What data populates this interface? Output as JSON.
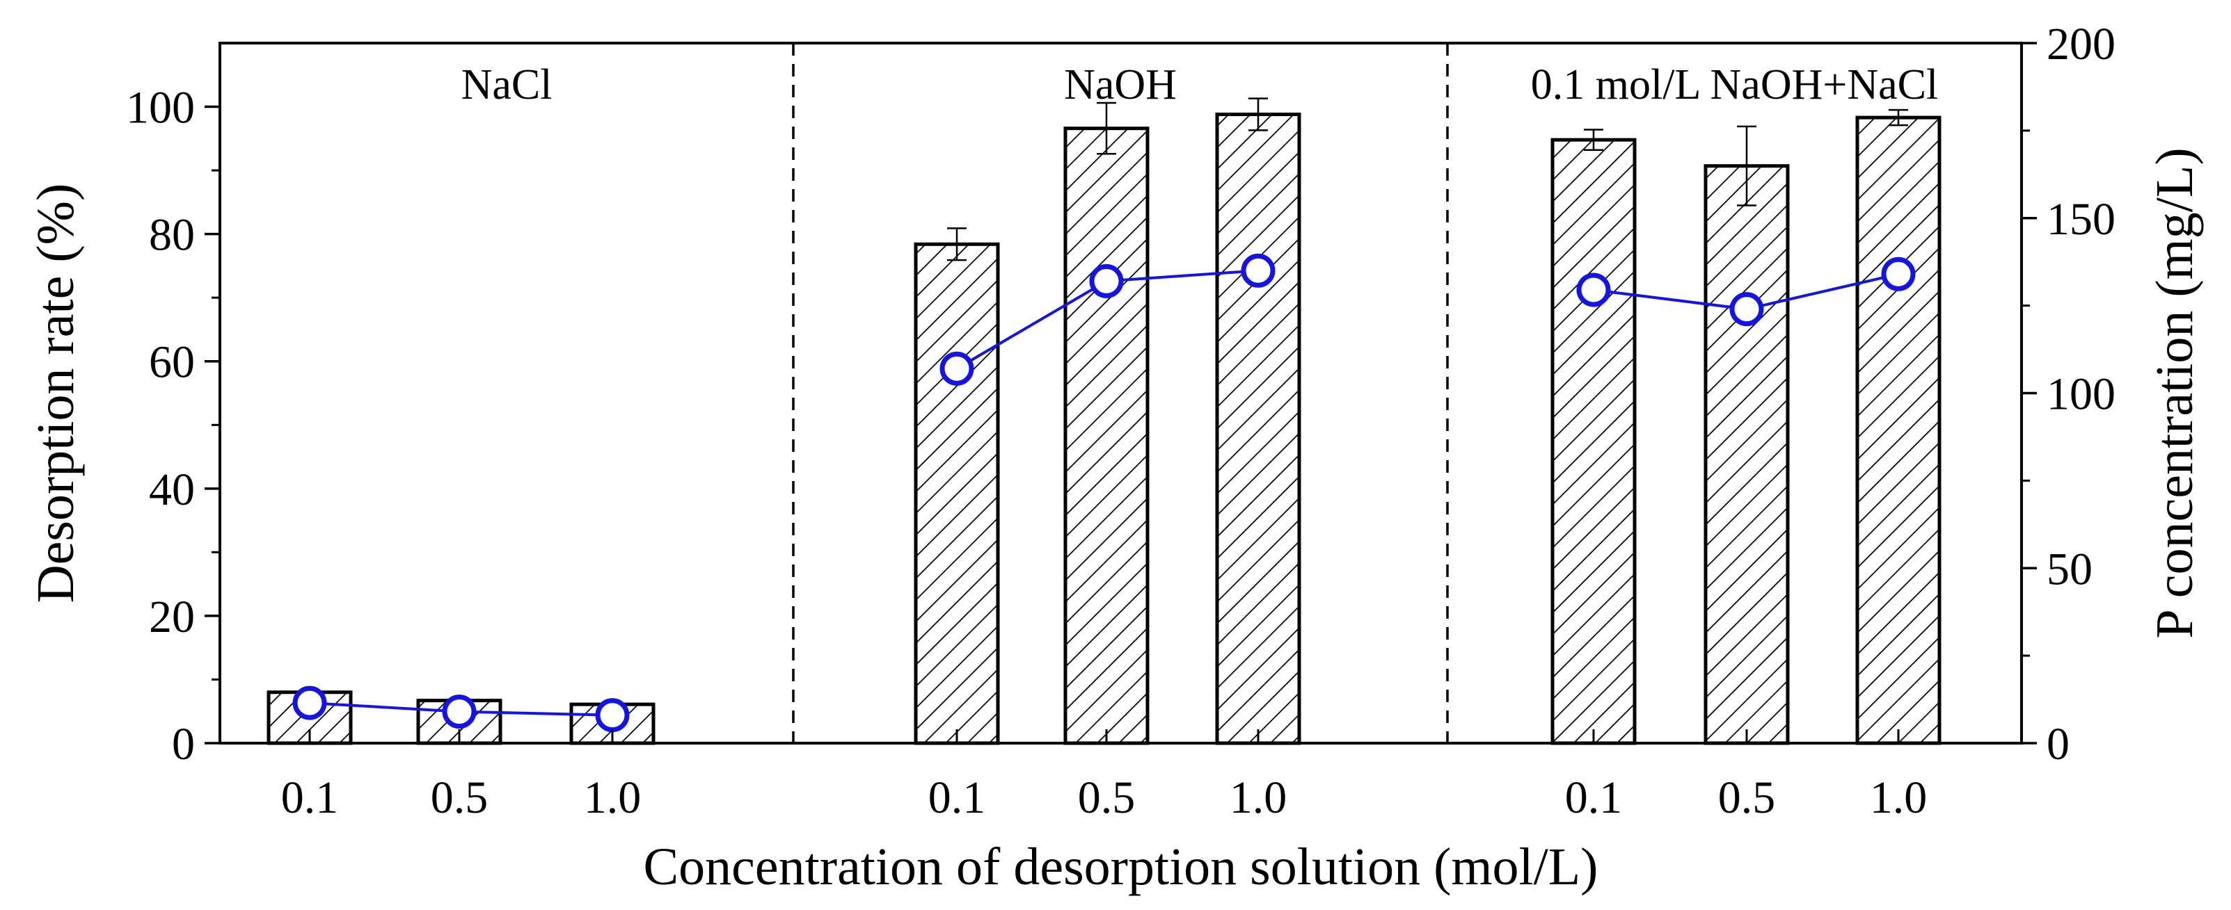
{
  "chart_data": {
    "type": "bar",
    "xlabel": "Concentration of desorption solution (mol/L)",
    "ylabel": "Desorption rate (%)",
    "y2label": "P concentration (mg/L)",
    "ylim": [
      0,
      110
    ],
    "y2lim": [
      0,
      200
    ],
    "yticks": [
      0,
      20,
      40,
      60,
      80,
      100
    ],
    "y2ticks": [
      0,
      50,
      100,
      150,
      200
    ],
    "grid": false,
    "groups": [
      {
        "label": "NaCl",
        "categories": [
          "0.1",
          "0.5",
          "1.0"
        ],
        "desorption_rate": [
          8.0,
          6.7,
          6.1
        ],
        "desorption_rate_error": [
          0,
          0,
          0
        ],
        "p_concentration": [
          11.5,
          9.0,
          8.0
        ]
      },
      {
        "label": "NaOH",
        "categories": [
          "0.1",
          "0.5",
          "1.0"
        ],
        "desorption_rate": [
          78.4,
          96.6,
          98.8
        ],
        "desorption_rate_error": [
          2.5,
          4.0,
          2.5
        ],
        "p_concentration": [
          107,
          132,
          135
        ]
      },
      {
        "label": "0.1 mol/L NaOH+NaCl",
        "categories": [
          "0.1",
          "0.5",
          "1.0"
        ],
        "desorption_rate": [
          94.8,
          90.7,
          98.3
        ],
        "desorption_rate_error": [
          1.6,
          6.2,
          1.2
        ],
        "p_concentration": [
          129.5,
          124,
          134
        ]
      }
    ],
    "colors": {
      "bar_edge": "#000000",
      "hatch": "#000000",
      "line": "#1414e6",
      "marker_fill": "#ffffff"
    }
  }
}
